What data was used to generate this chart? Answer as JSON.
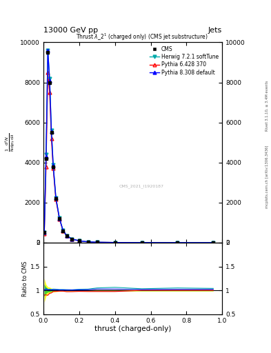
{
  "title_top": "13000 GeV pp",
  "title_right": "Jets",
  "plot_title": "Thrust $\\lambda$_2$^{1}$(charged only) (CMS jet substructure)",
  "xlabel": "thrust (charged-only)",
  "ylabel_ratio": "Ratio to CMS",
  "watermark": "CMS_2021_I1920187",
  "right_label_top": "Rivet 3.1.10, ≥ 3.4M events",
  "right_label_bot": "mcplots.cern.ch [arXiv:1306.3436]",
  "xlim": [
    0,
    1
  ],
  "ylim_main": [
    0,
    10000
  ],
  "ylim_ratio": [
    0.5,
    2.0
  ],
  "yticks_main": [
    0,
    2000,
    4000,
    6000,
    8000,
    10000
  ],
  "ytick_labels_main": [
    "0",
    "2000",
    "4000",
    "6000",
    "8000",
    "10000"
  ],
  "yticks_ratio": [
    0.5,
    1.0,
    1.5,
    2.0
  ],
  "ytick_labels_ratio": [
    "0.5",
    "1",
    "1.5",
    "2"
  ],
  "cms_color": "#000000",
  "herwig_color": "#00AAAA",
  "pythia6_color": "#FF0000",
  "pythia8_color": "#0000FF",
  "thrust_x": [
    0.005,
    0.015,
    0.025,
    0.035,
    0.045,
    0.055,
    0.07,
    0.09,
    0.11,
    0.13,
    0.16,
    0.2,
    0.25,
    0.3,
    0.4,
    0.55,
    0.75,
    0.95
  ],
  "cms_y": [
    500,
    4200,
    9500,
    8000,
    5500,
    3800,
    2200,
    1200,
    600,
    350,
    180,
    90,
    40,
    20,
    8,
    3,
    1,
    0.5
  ],
  "herwig_y": [
    500,
    4400,
    9600,
    8200,
    5600,
    3900,
    2250,
    1220,
    610,
    355,
    182,
    92,
    41,
    21,
    8.5,
    3.1,
    1.05,
    0.52
  ],
  "pythia6_y": [
    450,
    3800,
    8500,
    7500,
    5200,
    3700,
    2150,
    1180,
    590,
    340,
    175,
    88,
    39,
    19.5,
    7.8,
    3.0,
    1.0,
    0.5
  ],
  "pythia8_y": [
    500,
    4300,
    9600,
    8100,
    5550,
    3850,
    2230,
    1210,
    605,
    352,
    181,
    91,
    40.5,
    20.5,
    8.2,
    3.05,
    1.02,
    0.51
  ],
  "ratio_band_yellow_lo": [
    0.75,
    0.875,
    0.925,
    0.935,
    0.955,
    0.965,
    0.972,
    0.978,
    0.978,
    0.983,
    0.983,
    0.983,
    0.983,
    0.983,
    0.983,
    0.983,
    0.983,
    0.983
  ],
  "ratio_band_yellow_hi": [
    1.25,
    1.125,
    1.075,
    1.065,
    1.045,
    1.035,
    1.028,
    1.022,
    1.022,
    1.017,
    1.017,
    1.017,
    1.017,
    1.017,
    1.017,
    1.017,
    1.017,
    1.017
  ],
  "ratio_band_green_lo": [
    0.87,
    0.935,
    0.962,
    0.967,
    0.977,
    0.982,
    0.986,
    0.989,
    0.989,
    0.9915,
    0.9915,
    0.9915,
    0.9915,
    0.9915,
    0.9915,
    0.9915,
    0.9915,
    0.9915
  ],
  "ratio_band_green_hi": [
    1.13,
    1.065,
    1.038,
    1.033,
    1.023,
    1.018,
    1.014,
    1.011,
    1.011,
    1.0085,
    1.0085,
    1.0085,
    1.0085,
    1.0085,
    1.0085,
    1.0085,
    1.0085,
    1.0085
  ],
  "ratio_herwig_y": [
    1.0,
    1.048,
    1.011,
    1.025,
    1.018,
    1.026,
    1.023,
    1.017,
    1.017,
    1.014,
    1.011,
    1.022,
    1.025,
    1.05,
    1.063,
    1.033,
    1.05,
    1.04
  ],
  "ratio_pythia6_y": [
    0.9,
    0.905,
    0.895,
    0.9375,
    0.945,
    0.974,
    0.977,
    0.983,
    0.983,
    0.971,
    0.972,
    0.978,
    0.975,
    0.975,
    0.975,
    1.0,
    1.0,
    1.0
  ],
  "ratio_pythia8_y": [
    1.0,
    1.024,
    1.011,
    1.0125,
    1.009,
    1.013,
    1.014,
    1.008,
    1.008,
    1.006,
    1.006,
    1.011,
    1.0125,
    1.025,
    1.025,
    1.017,
    1.02,
    1.02
  ]
}
